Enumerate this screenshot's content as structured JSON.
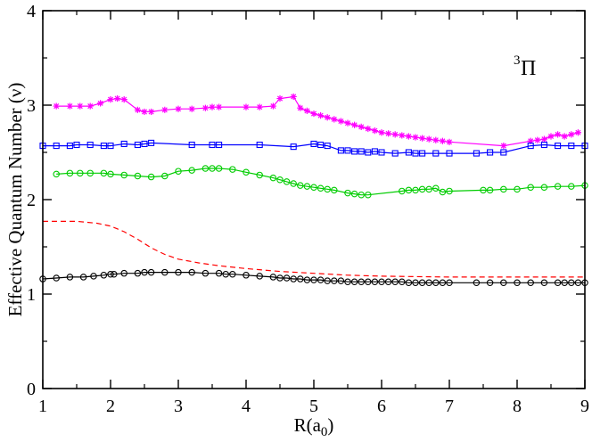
{
  "chart_data": {
    "type": "line",
    "title": "",
    "xlabel": "R(a",
    "xlabel_sub": "0",
    "xlabel_close": ")",
    "ylabel": "Effective Quantum Number (ν)",
    "xlim": [
      1,
      9
    ],
    "ylim": [
      0,
      4
    ],
    "xticks": [
      1,
      2,
      3,
      4,
      5,
      6,
      7,
      8,
      9
    ],
    "yticks": [
      0,
      1,
      2,
      3,
      4
    ],
    "xtick_labels": [
      "1",
      "2",
      "3",
      "4",
      "5",
      "6",
      "7",
      "8",
      "9"
    ],
    "ytick_labels": [
      "0",
      "1",
      "2",
      "3",
      "4"
    ],
    "grid": false,
    "annotation": {
      "sup": "3",
      "text": "Π",
      "position": "top-right"
    },
    "series": [
      {
        "name": "magenta-star",
        "color": "#ff00ff",
        "marker": "star",
        "line": "solid",
        "points": [
          [
            1.2,
            2.99
          ],
          [
            1.4,
            2.99
          ],
          [
            1.55,
            2.99
          ],
          [
            1.7,
            2.99
          ],
          [
            1.85,
            3.02
          ],
          [
            2.0,
            3.06
          ],
          [
            2.1,
            3.07
          ],
          [
            2.2,
            3.06
          ],
          [
            2.4,
            2.95
          ],
          [
            2.5,
            2.93
          ],
          [
            2.6,
            2.93
          ],
          [
            2.8,
            2.95
          ],
          [
            3.0,
            2.96
          ],
          [
            3.2,
            2.96
          ],
          [
            3.4,
            2.97
          ],
          [
            3.5,
            2.98
          ],
          [
            3.6,
            2.98
          ],
          [
            4.0,
            2.98
          ],
          [
            4.2,
            2.98
          ],
          [
            4.4,
            2.99
          ],
          [
            4.5,
            3.07
          ],
          [
            4.7,
            3.09
          ],
          [
            4.8,
            2.97
          ],
          [
            4.9,
            2.94
          ],
          [
            5.0,
            2.91
          ],
          [
            5.1,
            2.89
          ],
          [
            5.2,
            2.87
          ],
          [
            5.3,
            2.85
          ],
          [
            5.4,
            2.83
          ],
          [
            5.5,
            2.81
          ],
          [
            5.6,
            2.79
          ],
          [
            5.7,
            2.77
          ],
          [
            5.8,
            2.75
          ],
          [
            5.9,
            2.73
          ],
          [
            6.0,
            2.71
          ],
          [
            6.1,
            2.7
          ],
          [
            6.2,
            2.69
          ],
          [
            6.3,
            2.68
          ],
          [
            6.4,
            2.67
          ],
          [
            6.5,
            2.66
          ],
          [
            6.6,
            2.65
          ],
          [
            6.7,
            2.64
          ],
          [
            6.8,
            2.63
          ],
          [
            6.9,
            2.62
          ],
          [
            7.0,
            2.61
          ],
          [
            7.8,
            2.57
          ],
          [
            8.2,
            2.62
          ],
          [
            8.3,
            2.63
          ],
          [
            8.4,
            2.64
          ],
          [
            8.5,
            2.67
          ],
          [
            8.6,
            2.69
          ],
          [
            8.7,
            2.67
          ],
          [
            8.8,
            2.69
          ],
          [
            8.9,
            2.71
          ]
        ]
      },
      {
        "name": "blue-square",
        "color": "#0000ff",
        "marker": "square",
        "line": "solid",
        "points": [
          [
            1.0,
            2.57
          ],
          [
            1.2,
            2.57
          ],
          [
            1.4,
            2.57
          ],
          [
            1.5,
            2.58
          ],
          [
            1.7,
            2.58
          ],
          [
            1.9,
            2.57
          ],
          [
            2.0,
            2.57
          ],
          [
            2.2,
            2.59
          ],
          [
            2.4,
            2.58
          ],
          [
            2.5,
            2.59
          ],
          [
            2.6,
            2.6
          ],
          [
            3.2,
            2.58
          ],
          [
            3.5,
            2.58
          ],
          [
            3.6,
            2.58
          ],
          [
            4.2,
            2.58
          ],
          [
            4.7,
            2.56
          ],
          [
            5.0,
            2.59
          ],
          [
            5.1,
            2.58
          ],
          [
            5.2,
            2.57
          ],
          [
            5.4,
            2.52
          ],
          [
            5.5,
            2.52
          ],
          [
            5.6,
            2.51
          ],
          [
            5.7,
            2.51
          ],
          [
            5.8,
            2.5
          ],
          [
            5.9,
            2.51
          ],
          [
            6.0,
            2.5
          ],
          [
            6.2,
            2.49
          ],
          [
            6.4,
            2.5
          ],
          [
            6.5,
            2.49
          ],
          [
            6.6,
            2.49
          ],
          [
            6.8,
            2.49
          ],
          [
            7.0,
            2.49
          ],
          [
            7.4,
            2.49
          ],
          [
            7.6,
            2.5
          ],
          [
            7.8,
            2.5
          ],
          [
            8.2,
            2.57
          ],
          [
            8.4,
            2.58
          ],
          [
            8.6,
            2.57
          ],
          [
            8.8,
            2.57
          ],
          [
            9.0,
            2.57
          ]
        ]
      },
      {
        "name": "green-circle",
        "color": "#00cc00",
        "marker": "circle",
        "line": "solid",
        "points": [
          [
            1.2,
            2.27
          ],
          [
            1.4,
            2.28
          ],
          [
            1.55,
            2.28
          ],
          [
            1.7,
            2.28
          ],
          [
            1.9,
            2.28
          ],
          [
            2.0,
            2.27
          ],
          [
            2.2,
            2.26
          ],
          [
            2.4,
            2.25
          ],
          [
            2.6,
            2.24
          ],
          [
            2.8,
            2.25
          ],
          [
            3.0,
            2.3
          ],
          [
            3.2,
            2.31
          ],
          [
            3.4,
            2.33
          ],
          [
            3.5,
            2.33
          ],
          [
            3.6,
            2.33
          ],
          [
            3.8,
            2.32
          ],
          [
            4.0,
            2.29
          ],
          [
            4.2,
            2.26
          ],
          [
            4.4,
            2.23
          ],
          [
            4.5,
            2.21
          ],
          [
            4.6,
            2.19
          ],
          [
            4.7,
            2.17
          ],
          [
            4.8,
            2.15
          ],
          [
            4.9,
            2.14
          ],
          [
            5.0,
            2.13
          ],
          [
            5.1,
            2.12
          ],
          [
            5.2,
            2.11
          ],
          [
            5.3,
            2.1
          ],
          [
            5.5,
            2.07
          ],
          [
            5.6,
            2.06
          ],
          [
            5.7,
            2.05
          ],
          [
            5.8,
            2.05
          ],
          [
            6.3,
            2.09
          ],
          [
            6.4,
            2.1
          ],
          [
            6.5,
            2.1
          ],
          [
            6.6,
            2.11
          ],
          [
            6.7,
            2.11
          ],
          [
            6.8,
            2.12
          ],
          [
            6.9,
            2.08
          ],
          [
            7.0,
            2.09
          ],
          [
            7.5,
            2.1
          ],
          [
            7.6,
            2.1
          ],
          [
            7.8,
            2.11
          ],
          [
            8.0,
            2.11
          ],
          [
            8.2,
            2.13
          ],
          [
            8.4,
            2.13
          ],
          [
            8.6,
            2.14
          ],
          [
            8.8,
            2.14
          ],
          [
            9.0,
            2.15
          ]
        ]
      },
      {
        "name": "red-dashed",
        "color": "#ff0000",
        "marker": "none",
        "line": "dashed",
        "points": [
          [
            1.0,
            1.77
          ],
          [
            1.5,
            1.77
          ],
          [
            1.8,
            1.75
          ],
          [
            2.0,
            1.72
          ],
          [
            2.2,
            1.66
          ],
          [
            2.4,
            1.58
          ],
          [
            2.6,
            1.49
          ],
          [
            2.8,
            1.42
          ],
          [
            3.0,
            1.37
          ],
          [
            3.3,
            1.33
          ],
          [
            3.6,
            1.3
          ],
          [
            4.0,
            1.27
          ],
          [
            4.5,
            1.24
          ],
          [
            5.0,
            1.22
          ],
          [
            5.5,
            1.2
          ],
          [
            6.0,
            1.19
          ],
          [
            7.0,
            1.18
          ],
          [
            8.0,
            1.18
          ],
          [
            9.0,
            1.18
          ]
        ]
      },
      {
        "name": "black-circle",
        "color": "#000000",
        "marker": "circle",
        "line": "solid",
        "points": [
          [
            1.0,
            1.16
          ],
          [
            1.2,
            1.17
          ],
          [
            1.4,
            1.18
          ],
          [
            1.6,
            1.18
          ],
          [
            1.75,
            1.19
          ],
          [
            1.9,
            1.2
          ],
          [
            2.0,
            1.21
          ],
          [
            2.05,
            1.21
          ],
          [
            2.2,
            1.22
          ],
          [
            2.4,
            1.22
          ],
          [
            2.5,
            1.23
          ],
          [
            2.6,
            1.23
          ],
          [
            2.8,
            1.23
          ],
          [
            3.0,
            1.23
          ],
          [
            3.2,
            1.23
          ],
          [
            3.4,
            1.22
          ],
          [
            3.6,
            1.22
          ],
          [
            3.7,
            1.21
          ],
          [
            3.8,
            1.21
          ],
          [
            4.0,
            1.2
          ],
          [
            4.2,
            1.19
          ],
          [
            4.4,
            1.18
          ],
          [
            4.5,
            1.17
          ],
          [
            4.6,
            1.17
          ],
          [
            4.7,
            1.16
          ],
          [
            4.8,
            1.16
          ],
          [
            4.9,
            1.15
          ],
          [
            5.0,
            1.15
          ],
          [
            5.1,
            1.15
          ],
          [
            5.2,
            1.14
          ],
          [
            5.3,
            1.14
          ],
          [
            5.4,
            1.14
          ],
          [
            5.5,
            1.13
          ],
          [
            5.6,
            1.13
          ],
          [
            5.7,
            1.13
          ],
          [
            5.8,
            1.13
          ],
          [
            5.9,
            1.13
          ],
          [
            6.0,
            1.13
          ],
          [
            6.1,
            1.13
          ],
          [
            6.2,
            1.13
          ],
          [
            6.3,
            1.13
          ],
          [
            6.4,
            1.12
          ],
          [
            6.5,
            1.12
          ],
          [
            6.6,
            1.12
          ],
          [
            6.7,
            1.12
          ],
          [
            6.8,
            1.12
          ],
          [
            6.9,
            1.12
          ],
          [
            7.0,
            1.12
          ],
          [
            7.4,
            1.12
          ],
          [
            7.6,
            1.12
          ],
          [
            7.8,
            1.12
          ],
          [
            8.0,
            1.12
          ],
          [
            8.2,
            1.12
          ],
          [
            8.4,
            1.12
          ],
          [
            8.6,
            1.12
          ],
          [
            8.7,
            1.12
          ],
          [
            8.8,
            1.12
          ],
          [
            8.9,
            1.12
          ],
          [
            9.0,
            1.12
          ]
        ]
      }
    ]
  }
}
